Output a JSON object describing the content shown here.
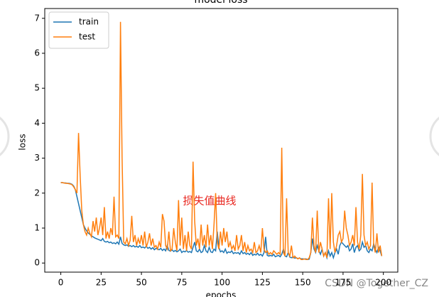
{
  "chart_data": {
    "type": "line",
    "title": "model loss",
    "xlabel": "epochs",
    "ylabel": "loss",
    "annotation": "损失值曲线",
    "watermark": "CSDN @Together_CZ",
    "legend": "upper left",
    "xlim": [
      -9.95,
      208.95
    ],
    "ylim": [
      -0.26,
      7.28
    ],
    "xticks": [
      0,
      25,
      50,
      75,
      100,
      125,
      150,
      175,
      200
    ],
    "yticks": [
      0,
      1,
      2,
      3,
      4,
      5,
      6,
      7
    ],
    "x": [
      0,
      1,
      2,
      3,
      4,
      5,
      6,
      7,
      8,
      9,
      10,
      11,
      12,
      13,
      14,
      15,
      16,
      17,
      18,
      19,
      20,
      21,
      22,
      23,
      24,
      25,
      26,
      27,
      28,
      29,
      30,
      31,
      32,
      33,
      34,
      35,
      36,
      37,
      38,
      39,
      40,
      41,
      42,
      43,
      44,
      45,
      46,
      47,
      48,
      49,
      50,
      51,
      52,
      53,
      54,
      55,
      56,
      57,
      58,
      59,
      60,
      61,
      62,
      63,
      64,
      65,
      66,
      67,
      68,
      69,
      70,
      71,
      72,
      73,
      74,
      75,
      76,
      77,
      78,
      79,
      80,
      81,
      82,
      83,
      84,
      85,
      86,
      87,
      88,
      89,
      90,
      91,
      92,
      93,
      94,
      95,
      96,
      97,
      98,
      99,
      100,
      101,
      102,
      103,
      104,
      105,
      106,
      107,
      108,
      109,
      110,
      111,
      112,
      113,
      114,
      115,
      116,
      117,
      118,
      119,
      120,
      121,
      122,
      123,
      124,
      125,
      126,
      127,
      128,
      129,
      130,
      131,
      132,
      133,
      134,
      135,
      136,
      137,
      138,
      139,
      140,
      141,
      142,
      143,
      144,
      145,
      146,
      147,
      148,
      149,
      150,
      151,
      152,
      153,
      154,
      155,
      156,
      157,
      158,
      159,
      160,
      161,
      162,
      163,
      164,
      165,
      166,
      167,
      168,
      169,
      170,
      171,
      172,
      173,
      174,
      175,
      176,
      177,
      178,
      179,
      180,
      181,
      182,
      183,
      184,
      185,
      186,
      187,
      188,
      189,
      190,
      191,
      192,
      193,
      194,
      195,
      196,
      197,
      198,
      199
    ],
    "series": [
      {
        "name": "train",
        "color": "#1f77b4",
        "values": [
          2.3,
          2.3,
          2.29,
          2.29,
          2.28,
          2.28,
          2.27,
          2.25,
          2.2,
          2.1,
          1.9,
          1.7,
          1.5,
          1.3,
          1.1,
          1.0,
          0.92,
          0.86,
          0.82,
          0.78,
          0.75,
          0.72,
          0.7,
          0.68,
          0.66,
          0.64,
          0.7,
          0.62,
          0.6,
          0.62,
          0.58,
          0.6,
          0.56,
          0.58,
          0.55,
          0.6,
          0.54,
          0.75,
          0.56,
          0.52,
          0.5,
          0.52,
          0.48,
          0.5,
          0.47,
          0.5,
          0.46,
          0.48,
          0.45,
          0.5,
          0.44,
          0.46,
          0.43,
          0.48,
          0.42,
          0.45,
          0.4,
          0.44,
          0.38,
          0.42,
          0.4,
          0.38,
          0.42,
          0.36,
          0.4,
          0.35,
          0.5,
          0.36,
          0.34,
          0.38,
          0.33,
          0.36,
          0.32,
          0.35,
          0.4,
          0.3,
          0.34,
          0.32,
          0.36,
          0.31,
          0.33,
          0.3,
          0.45,
          0.6,
          0.35,
          0.32,
          0.4,
          0.3,
          0.33,
          0.5,
          0.35,
          0.3,
          0.45,
          0.32,
          0.3,
          0.4,
          0.35,
          0.9,
          0.45,
          0.32,
          0.35,
          0.3,
          0.4,
          0.28,
          0.32,
          0.3,
          0.35,
          0.27,
          0.3,
          0.28,
          0.3,
          0.25,
          0.35,
          0.27,
          0.3,
          0.25,
          0.28,
          0.24,
          0.3,
          0.22,
          0.25,
          0.23,
          0.28,
          0.22,
          0.25,
          0.2,
          0.3,
          0.75,
          0.22,
          0.2,
          0.22,
          0.2,
          0.25,
          0.18,
          0.2,
          0.22,
          0.18,
          0.25,
          0.4,
          0.2,
          0.18,
          0.3,
          0.17,
          0.15,
          0.18,
          0.14,
          0.15,
          0.13,
          0.14,
          0.12,
          0.12,
          0.11,
          0.12,
          0.1,
          0.11,
          0.3,
          0.7,
          0.4,
          0.3,
          0.5,
          0.35,
          0.25,
          0.4,
          0.2,
          0.3,
          0.15,
          0.35,
          0.2,
          0.3,
          0.15,
          0.3,
          0.4,
          0.25,
          0.5,
          0.6,
          0.55,
          0.5,
          0.45,
          0.5,
          0.35,
          0.4,
          0.55,
          0.3,
          0.45,
          0.5,
          0.35,
          0.4,
          0.6,
          0.45,
          0.5,
          0.35,
          0.3,
          0.4,
          0.35,
          0.55,
          0.4,
          0.3,
          0.45,
          0.35,
          0.2
        ]
      },
      {
        "name": "test",
        "color": "#ff7f0e",
        "values": [
          2.3,
          2.3,
          2.29,
          2.28,
          2.28,
          2.27,
          2.26,
          2.24,
          2.18,
          2.1,
          2.0,
          3.72,
          2.5,
          1.5,
          1.1,
          0.9,
          0.8,
          1.0,
          0.85,
          0.75,
          1.2,
          0.9,
          1.3,
          0.8,
          1.0,
          1.3,
          0.8,
          1.6,
          0.7,
          0.9,
          0.7,
          1.0,
          0.8,
          1.9,
          0.75,
          0.8,
          0.7,
          6.9,
          3.0,
          0.6,
          0.55,
          0.7,
          0.5,
          0.65,
          1.35,
          0.6,
          0.8,
          0.5,
          0.7,
          0.55,
          0.8,
          0.5,
          0.9,
          0.45,
          0.6,
          0.85,
          0.5,
          0.7,
          0.45,
          0.5,
          0.4,
          0.6,
          0.45,
          1.4,
          1.2,
          0.5,
          0.4,
          0.9,
          0.35,
          0.4,
          1.0,
          0.6,
          0.35,
          1.8,
          0.5,
          1.3,
          0.4,
          0.8,
          0.35,
          0.9,
          0.5,
          0.4,
          2.9,
          1.2,
          0.5,
          0.7,
          0.4,
          1.1,
          0.5,
          0.8,
          0.45,
          1.1,
          0.5,
          0.8,
          0.4,
          1.1,
          2.0,
          0.6,
          0.4,
          0.9,
          0.5,
          1.0,
          0.6,
          0.9,
          0.45,
          0.6,
          0.4,
          0.5,
          0.35,
          0.8,
          0.4,
          0.5,
          0.8,
          0.35,
          0.6,
          0.3,
          0.5,
          0.35,
          0.4,
          0.3,
          0.6,
          0.3,
          0.35,
          0.5,
          0.3,
          1.0,
          0.4,
          0.3,
          0.35,
          0.25,
          0.3,
          0.25,
          0.35,
          0.3,
          0.25,
          0.3,
          0.25,
          3.3,
          0.3,
          0.2,
          1.85,
          0.3,
          0.2,
          0.5,
          0.15,
          0.2,
          0.15,
          0.12,
          0.15,
          0.1,
          0.1,
          0.12,
          0.1,
          0.1,
          0.15,
          0.3,
          1.3,
          0.5,
          0.3,
          1.5,
          0.3,
          0.6,
          0.4,
          0.2,
          0.3,
          0.15,
          1.85,
          0.4,
          2.0,
          0.6,
          0.3,
          0.5,
          0.8,
          0.9,
          0.6,
          0.7,
          1.5,
          1.0,
          0.8,
          0.5,
          0.6,
          0.8,
          0.5,
          1.6,
          0.6,
          0.4,
          0.8,
          2.55,
          0.8,
          0.5,
          0.6,
          0.4,
          0.5,
          2.3,
          0.5,
          0.3,
          0.85,
          0.3,
          0.5,
          0.2
        ]
      }
    ]
  }
}
